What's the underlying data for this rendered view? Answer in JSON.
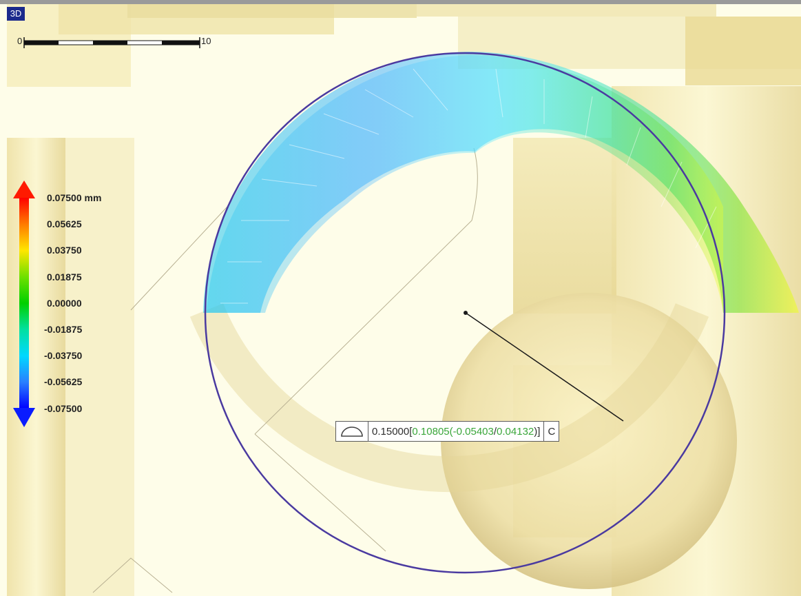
{
  "view": {
    "mode_badge": "3D"
  },
  "scale_bar": {
    "start_label": "0",
    "end_label": "10"
  },
  "legend": {
    "labels": [
      "0.07500 mm",
      "0.05625",
      "0.03750",
      "0.01875",
      "0.00000",
      "-0.01875",
      "-0.03750",
      "-0.05625",
      "-0.07500"
    ],
    "gradient_colors": [
      "#ff0000",
      "#ff7a00",
      "#ffe600",
      "#6fe000",
      "#00d000",
      "#00e0a0",
      "#00d8ff",
      "#2a7fff",
      "#0000ff"
    ]
  },
  "annotation": {
    "icon": "semicircle-icon",
    "nominal": "0.15000",
    "open_bracket": "[",
    "measured": "0.10805",
    "open_paren": " (",
    "min": "-0.05403",
    "slash": "/",
    "max": "0.04132",
    "close": ")]",
    "label": "C"
  },
  "colors": {
    "circle": "#4a3aa0",
    "leader": "#1a1a1a",
    "geometry_fill": "#f0e6b8"
  }
}
